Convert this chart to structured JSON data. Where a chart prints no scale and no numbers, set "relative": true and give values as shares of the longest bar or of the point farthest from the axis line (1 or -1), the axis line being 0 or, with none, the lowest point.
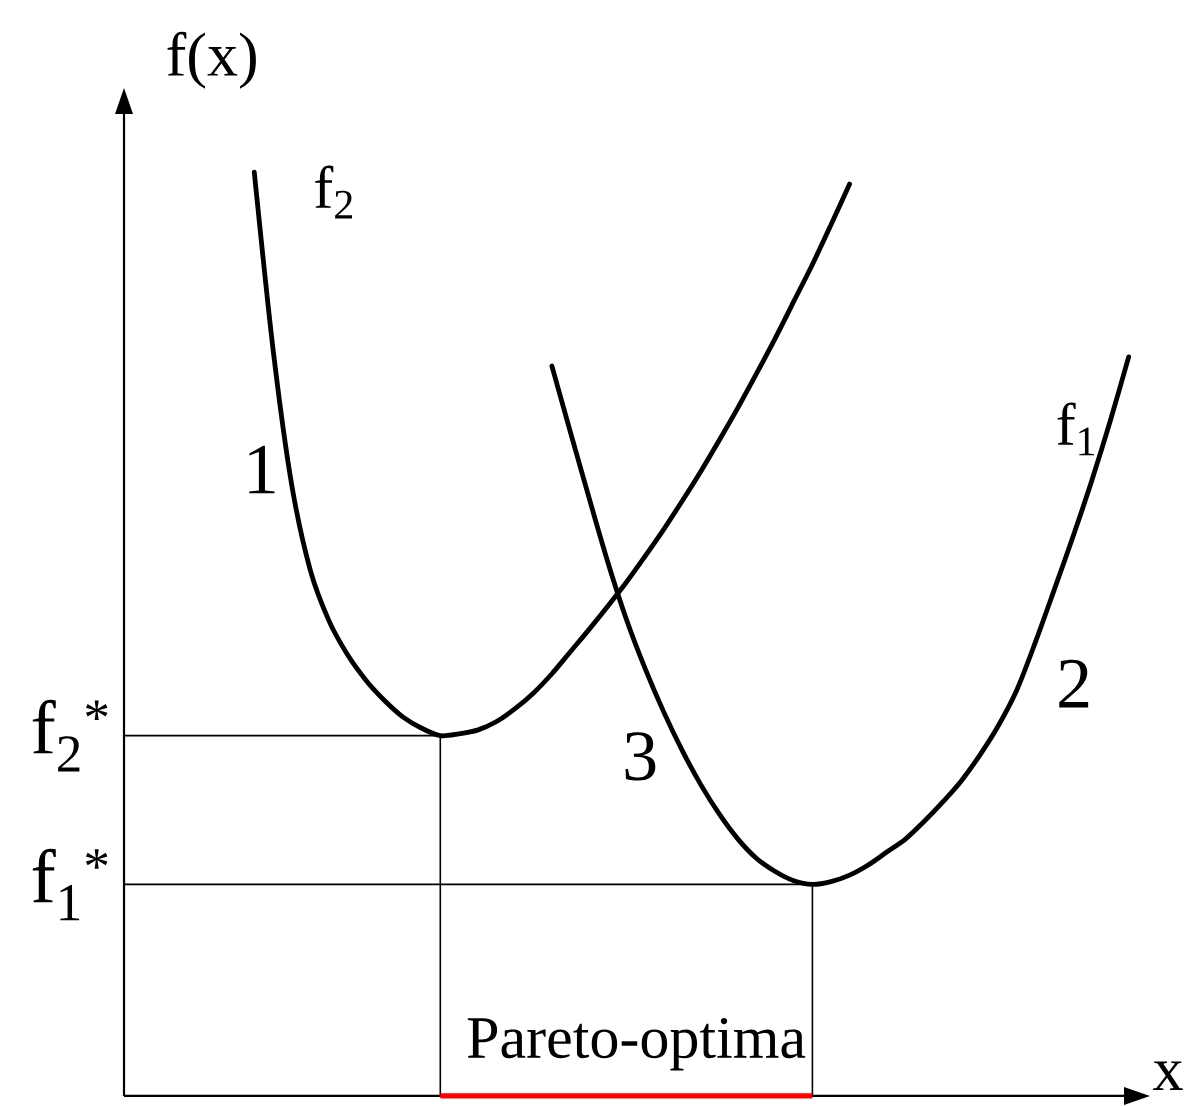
{
  "chart_data": {
    "type": "line",
    "relative": true,
    "xlabel": "x",
    "ylabel": "f(x)",
    "categories": [
      null,
      null,
      null,
      null,
      null,
      null,
      null,
      null,
      null,
      null,
      null,
      null,
      null,
      null,
      null,
      null,
      null,
      null,
      null,
      null,
      null,
      null,
      null,
      null,
      null,
      null,
      null,
      null,
      null,
      null,
      null,
      null,
      null,
      null,
      null,
      null,
      null,
      null,
      null,
      null,
      null,
      null,
      null,
      null,
      null,
      null,
      null,
      null,
      null,
      null,
      null,
      null,
      null,
      null
    ],
    "series": [
      {
        "name": "f$_{2}$",
        "color": "#000000",
        "values": [
          null,
          null,
          null,
          null,
          null,
          null,
          1.0,
          0.81,
          0.663,
          0.57,
          0.515,
          0.478,
          0.45,
          0.428,
          0.41,
          0.398,
          0.39,
          0.392,
          0.396,
          0.405,
          0.419,
          0.436,
          0.457,
          0.481,
          0.505,
          0.53,
          0.556,
          0.584,
          0.613,
          0.644,
          0.676,
          0.71,
          0.745,
          0.782,
          0.82,
          0.86,
          0.9,
          0.943,
          0.987,
          null,
          null,
          null,
          null,
          null,
          null,
          null,
          null,
          null,
          null,
          null,
          null,
          null,
          null,
          null
        ]
      },
      {
        "name": "f$_{1}$",
        "color": "#000000",
        "values": [
          null,
          null,
          null,
          null,
          null,
          null,
          null,
          null,
          null,
          null,
          null,
          null,
          null,
          null,
          null,
          null,
          null,
          null,
          null,
          null,
          null,
          null,
          0.79,
          0.718,
          0.647,
          0.578,
          0.516,
          0.463,
          0.416,
          0.374,
          0.337,
          0.305,
          0.278,
          0.257,
          0.243,
          0.233,
          0.229,
          0.232,
          0.239,
          0.25,
          0.264,
          0.278,
          0.297,
          0.318,
          0.341,
          0.369,
          0.401,
          0.44,
          0.492,
          0.548,
          0.605,
          0.665,
          0.73,
          0.8
        ]
      }
    ],
    "ref_lines": [
      {
        "axis": "y",
        "value": 0.39,
        "label": "f$_{2}$$^{*}$"
      },
      {
        "axis": "y",
        "value": 0.229,
        "label": "f$_{1}$$^{*}$"
      }
    ],
    "annotations": [
      "1",
      "2",
      "3",
      "Pareto-optima"
    ]
  }
}
